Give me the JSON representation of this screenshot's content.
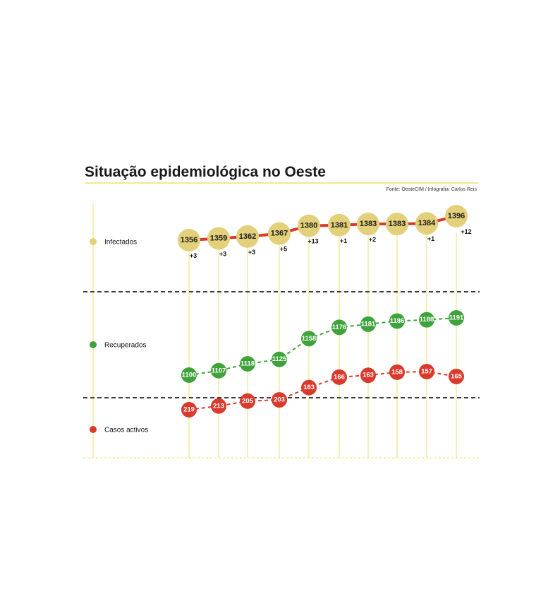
{
  "title": "Situação epidemiológica no Oeste",
  "source": "Fonte: OesteCIM / Infografia: Carlos Reis",
  "colors": {
    "infected": "#e3d07a",
    "infected_line": "#d93a2b",
    "recovered": "#3fa33c",
    "active": "#d93a2b",
    "guide": "#e8e36a",
    "divider": "#222222"
  },
  "chart_data": {
    "type": "line",
    "x_count": 10,
    "series": [
      {
        "name": "Infectados",
        "values": [
          1356,
          1359,
          1362,
          1367,
          1380,
          1381,
          1383,
          1383,
          1384,
          1396
        ],
        "deltas": [
          "+3",
          "+3",
          "+3",
          "+5",
          "+13",
          "+1",
          "+2",
          "",
          "+1",
          "+12"
        ]
      },
      {
        "name": "Recuperados",
        "values": [
          1100,
          1107,
          1118,
          1125,
          1158,
          1176,
          1181,
          1186,
          1188,
          1191
        ]
      },
      {
        "name": "Casos activos",
        "values": [
          219,
          213,
          205,
          203,
          183,
          166,
          163,
          158,
          157,
          165
        ]
      }
    ]
  }
}
